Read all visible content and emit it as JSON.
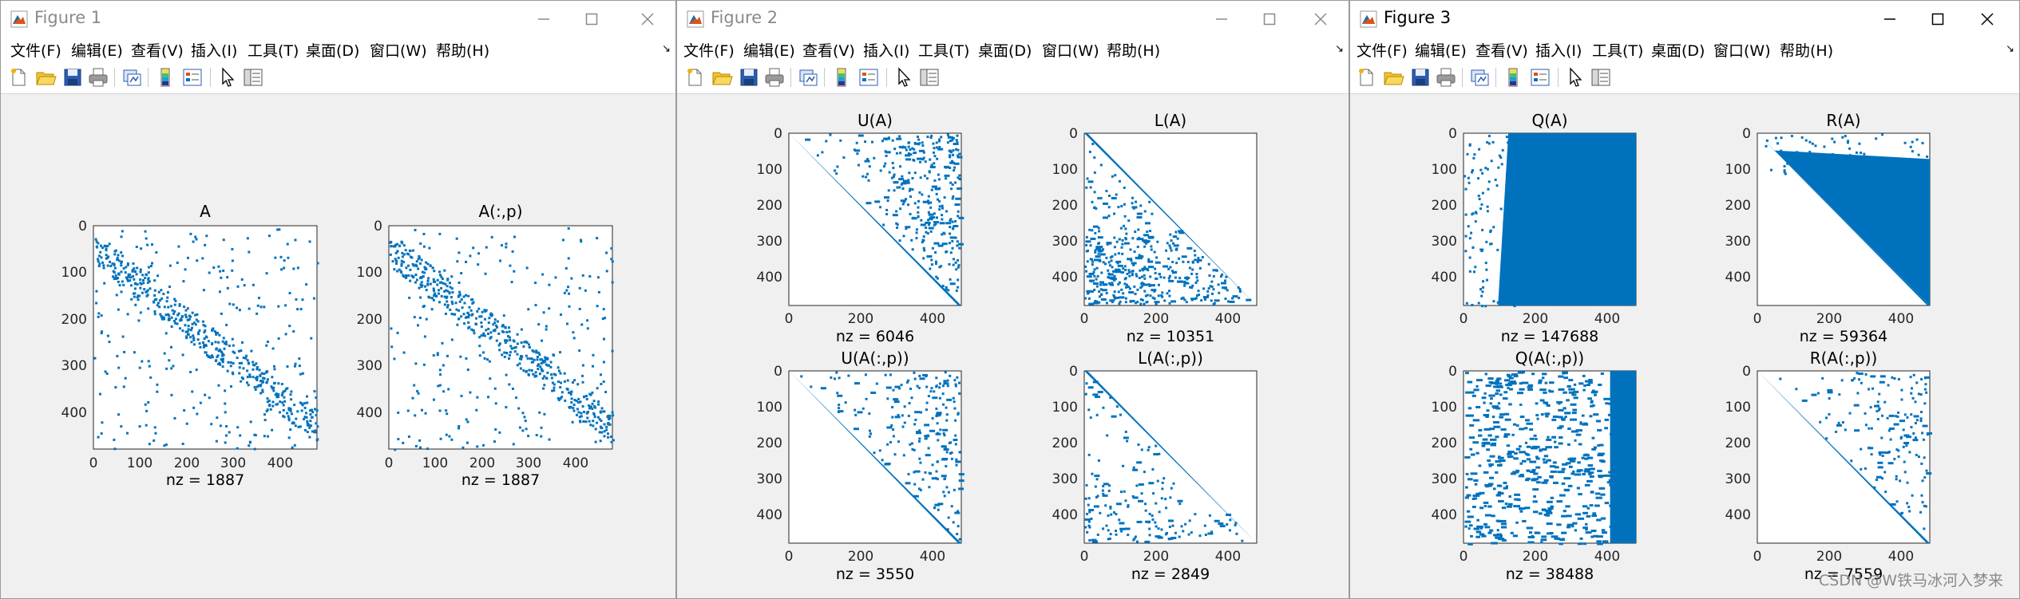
{
  "menu": [
    "文件(F)",
    "编辑(E)",
    "查看(V)",
    "插入(I)",
    "工具(T)",
    "桌面(D)",
    "窗口(W)",
    "帮助(H)"
  ],
  "windows": [
    {
      "title": "Figure 1",
      "active": false,
      "plots": [
        {
          "title": "A",
          "nz": "nz = 1887",
          "xticks": [
            "0",
            "100",
            "200",
            "300",
            "400"
          ],
          "yticks": [
            "0",
            "100",
            "200",
            "300",
            "400"
          ],
          "fill": 0.14
        },
        {
          "title": "A(:,p)",
          "nz": "nz = 1887",
          "xticks": [
            "0",
            "100",
            "200",
            "300",
            "400"
          ],
          "yticks": [
            "0",
            "100",
            "200",
            "300",
            "400"
          ],
          "fill": 0.12
        }
      ]
    },
    {
      "title": "Figure 2",
      "active": false,
      "plots": [
        {
          "title": "U(A)",
          "nz": "nz = 6046",
          "xticks": [
            "0",
            "200",
            "400"
          ],
          "yticks": [
            "0",
            "100",
            "200",
            "300",
            "400"
          ],
          "fill": 0.3
        },
        {
          "title": "L(A)",
          "nz": "nz = 10351",
          "xticks": [
            "0",
            "200",
            "400"
          ],
          "yticks": [
            "0",
            "100",
            "200",
            "300",
            "400"
          ],
          "fill": 0.4
        },
        {
          "title": "U(A(:,p))",
          "nz": "nz = 3550",
          "xticks": [
            "0",
            "200",
            "400"
          ],
          "yticks": [
            "0",
            "100",
            "200",
            "300",
            "400"
          ],
          "fill": 0.2
        },
        {
          "title": "L(A(:,p))",
          "nz": "nz = 2849",
          "xticks": [
            "0",
            "200",
            "400"
          ],
          "yticks": [
            "0",
            "100",
            "200",
            "300",
            "400"
          ],
          "fill": 0.16
        }
      ]
    },
    {
      "title": "Figure 3",
      "active": true,
      "plots": [
        {
          "title": "Q(A)",
          "nz": "nz = 147688",
          "xticks": [
            "0",
            "200",
            "400"
          ],
          "yticks": [
            "0",
            "100",
            "200",
            "300",
            "400"
          ],
          "fill": 0.82
        },
        {
          "title": "R(A)",
          "nz": "nz = 59364",
          "xticks": [
            "0",
            "200",
            "400"
          ],
          "yticks": [
            "0",
            "100",
            "200",
            "300",
            "400"
          ],
          "fill": 0.95
        },
        {
          "title": "Q(A(:,p))",
          "nz": "nz = 38488",
          "xticks": [
            "0",
            "200",
            "400"
          ],
          "yticks": [
            "0",
            "100",
            "200",
            "300",
            "400"
          ],
          "fill": 0.35
        },
        {
          "title": "R(A(:,p))",
          "nz": "nz = 7559",
          "xticks": [
            "0",
            "200",
            "400"
          ],
          "yticks": [
            "0",
            "100",
            "200",
            "300",
            "400"
          ],
          "fill": 0.15
        }
      ]
    }
  ],
  "watermark": "CSDN @W铁马冰河入梦来",
  "colors": {
    "marker": "#0072bd",
    "axes": "#262626",
    "background": "#f0f0f0"
  }
}
